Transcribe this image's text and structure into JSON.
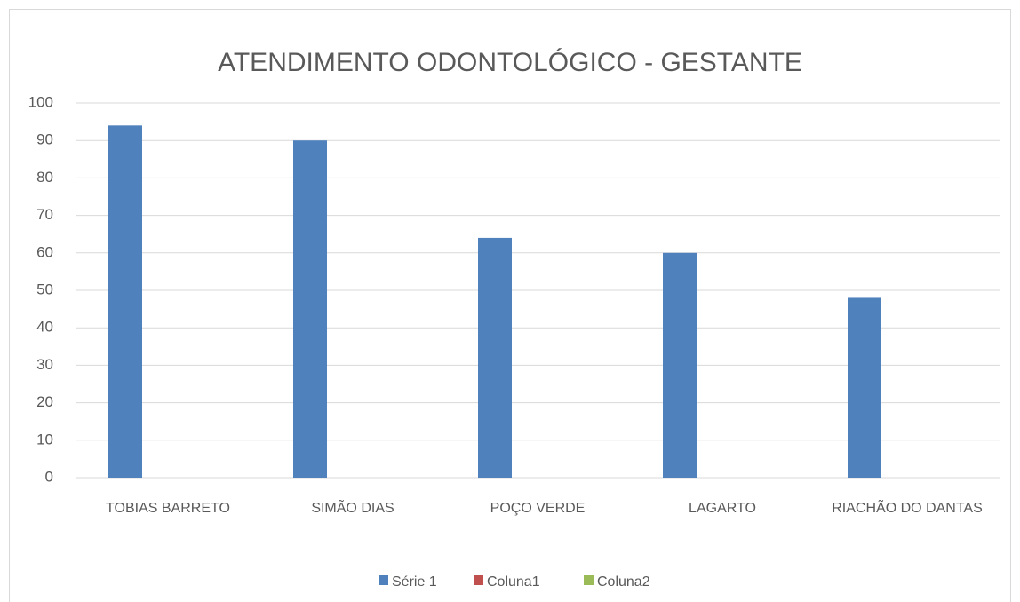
{
  "chart_data": {
    "type": "bar",
    "title": "ATENDIMENTO ODONTOLÓGICO - GESTANTE",
    "categories": [
      "TOBIAS BARRETO",
      "SIMÃO DIAS",
      "POÇO VERDE",
      "LAGARTO",
      "RIACHÃO DO DANTAS"
    ],
    "series": [
      {
        "name": "Série 1",
        "color": "#4f81bd",
        "values": [
          94,
          90,
          64,
          60,
          48
        ]
      },
      {
        "name": "Coluna1",
        "color": "#c0504d",
        "values": [
          null,
          null,
          null,
          null,
          null
        ]
      },
      {
        "name": "Coluna2",
        "color": "#9bbb59",
        "values": [
          null,
          null,
          null,
          null,
          null
        ]
      }
    ],
    "ylim": [
      0,
      100
    ],
    "yticks": [
      0,
      10,
      20,
      30,
      40,
      50,
      60,
      70,
      80,
      90,
      100
    ],
    "grid": true,
    "legend": "bottom"
  }
}
